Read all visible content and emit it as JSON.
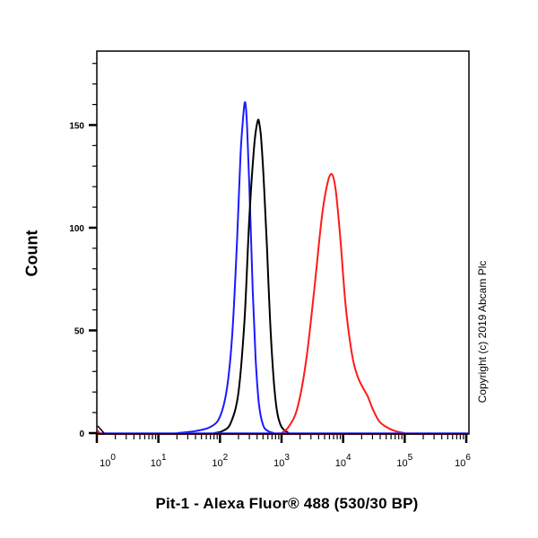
{
  "chart_data": {
    "type": "line",
    "subtype": "flow cytometry histogram overlay",
    "title": "",
    "xlabel": "Pit-1 - Alexa Fluor® 488 (530/30 BP)",
    "ylabel": "Count",
    "xscale": "log",
    "xlim": [
      1,
      1000000
    ],
    "ylim": [
      0,
      186
    ],
    "x_ticks": [
      {
        "base": "10",
        "exp": "0",
        "value": 1
      },
      {
        "base": "10",
        "exp": "1",
        "value": 10
      },
      {
        "base": "10",
        "exp": "2",
        "value": 100
      },
      {
        "base": "10",
        "exp": "3",
        "value": 1000
      },
      {
        "base": "10",
        "exp": "4",
        "value": 10000
      },
      {
        "base": "10",
        "exp": "5",
        "value": 100000
      },
      {
        "base": "10",
        "exp": "6",
        "value": 1000000
      }
    ],
    "y_ticks": [
      0,
      50,
      100,
      150
    ],
    "grid": false,
    "legend": null,
    "annotation": "Copyright (c) 2019 Abcam Plc",
    "series": [
      {
        "name": "blue",
        "color": "#1a1aff",
        "points": [
          [
            20,
            0
          ],
          [
            40,
            1
          ],
          [
            70,
            3
          ],
          [
            100,
            8
          ],
          [
            130,
            22
          ],
          [
            160,
            50
          ],
          [
            190,
            95
          ],
          [
            215,
            135
          ],
          [
            240,
            155
          ],
          [
            257,
            161
          ],
          [
            275,
            150
          ],
          [
            300,
            120
          ],
          [
            340,
            70
          ],
          [
            380,
            36
          ],
          [
            430,
            14
          ],
          [
            500,
            4
          ],
          [
            600,
            1
          ],
          [
            750,
            0
          ]
        ]
      },
      {
        "name": "black",
        "color": "#000000",
        "points": [
          [
            80,
            0
          ],
          [
            110,
            1
          ],
          [
            150,
            5
          ],
          [
            200,
            20
          ],
          [
            250,
            55
          ],
          [
            300,
            105
          ],
          [
            360,
            140
          ],
          [
            410,
            152
          ],
          [
            440,
            150
          ],
          [
            470,
            142
          ],
          [
            520,
            120
          ],
          [
            580,
            90
          ],
          [
            650,
            55
          ],
          [
            750,
            25
          ],
          [
            850,
            10
          ],
          [
            1000,
            3
          ],
          [
            1300,
            0
          ]
        ]
      },
      {
        "name": "red",
        "color": "#ff1a1a",
        "points": [
          [
            1000,
            0
          ],
          [
            1300,
            3
          ],
          [
            1800,
            12
          ],
          [
            2500,
            35
          ],
          [
            3400,
            70
          ],
          [
            4500,
            105
          ],
          [
            5600,
            122
          ],
          [
            6600,
            126
          ],
          [
            7600,
            118
          ],
          [
            9000,
            95
          ],
          [
            11000,
            62
          ],
          [
            14000,
            38
          ],
          [
            17000,
            28
          ],
          [
            21000,
            22
          ],
          [
            25000,
            18
          ],
          [
            30000,
            12
          ],
          [
            38000,
            6
          ],
          [
            50000,
            3
          ],
          [
            70000,
            1
          ],
          [
            100000,
            0
          ]
        ]
      }
    ]
  },
  "labels": {
    "ylabel": "Count",
    "xlabel": "Pit-1 - Alexa Fluor® 488 (530/30 BP)",
    "copyright": "Copyright (c) 2019 Abcam Plc"
  }
}
